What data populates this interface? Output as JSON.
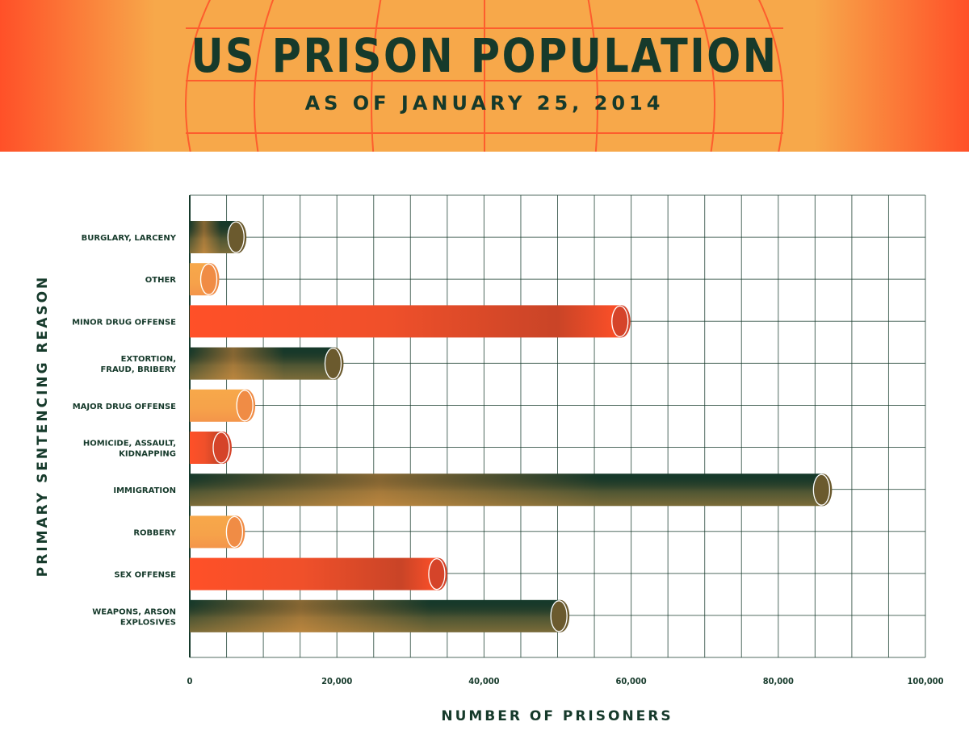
{
  "chart_data": {
    "type": "bar",
    "orientation": "horizontal",
    "title": "US PRISON POPULATION",
    "subtitle": "AS OF JANUARY 25, 2014",
    "xlabel": "NUMBER OF PRISONERS",
    "ylabel": "PRIMARY SENTENCING REASON",
    "xlim": [
      0,
      100000
    ],
    "xticks": [
      {
        "value": 0,
        "label": "0"
      },
      {
        "value": 20000,
        "label": "20,000"
      },
      {
        "value": 40000,
        "label": "40,000"
      },
      {
        "value": 60000,
        "label": "60,000"
      },
      {
        "value": 80000,
        "label": "80,000"
      },
      {
        "value": 100000,
        "label": "100,000"
      }
    ],
    "grid": true,
    "categories": [
      {
        "lines": [
          "BURGLARY, LARCENY"
        ],
        "value": 6500,
        "color": "#163a2b"
      },
      {
        "lines": [
          "OTHER"
        ],
        "value": 2800,
        "color": "#f7a84a"
      },
      {
        "lines": [
          "MINOR DRUG OFFENSE"
        ],
        "value": 58700,
        "color": "#ff5028"
      },
      {
        "lines": [
          "EXTORTION,",
          "FRAUD, BRIBERY"
        ],
        "value": 19700,
        "color": "#163a2b"
      },
      {
        "lines": [
          "MAJOR DRUG OFFENSE"
        ],
        "value": 7700,
        "color": "#f7a84a"
      },
      {
        "lines": [
          "HOMICIDE, ASSAULT,",
          "KIDNAPPING"
        ],
        "value": 4500,
        "color": "#ff5028"
      },
      {
        "lines": [
          "IMMIGRATION"
        ],
        "value": 86100,
        "color": "#163a2b"
      },
      {
        "lines": [
          "ROBBERY"
        ],
        "value": 6300,
        "color": "#f7a84a"
      },
      {
        "lines": [
          "SEX OFFENSE"
        ],
        "value": 33800,
        "color": "#ff5028"
      },
      {
        "lines": [
          "WEAPONS, ARSON",
          "EXPLOSIVES"
        ],
        "value": 50400,
        "color": "#163a2b"
      }
    ]
  },
  "colors": {
    "banner_red": "#ff5028",
    "banner_orange": "#f7a84a",
    "text_dark": "#163a2b",
    "grid": "#163a2b"
  }
}
